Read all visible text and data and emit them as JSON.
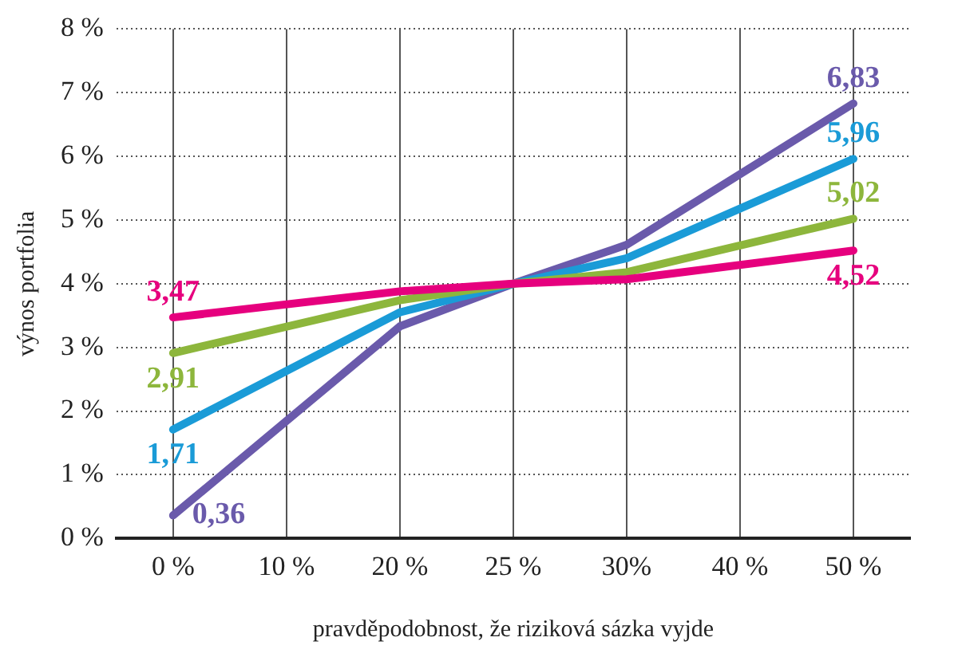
{
  "chart_data": {
    "type": "line",
    "xlabel": "pravděpodobnost, že riziková sázka vyjde",
    "ylabel": "výnos portfolia",
    "categories": [
      "0 %",
      "10 %",
      "20 %",
      "25 %",
      "30%",
      "40 %",
      "50 %"
    ],
    "series": [
      {
        "color": "#e6007e",
        "values": [
          3.47,
          null,
          3.88,
          4.0,
          4.07,
          null,
          4.52
        ],
        "value_labels": [
          "3,47",
          null,
          null,
          null,
          null,
          null,
          "4,52"
        ]
      },
      {
        "color": "#8db63c",
        "values": [
          2.91,
          null,
          3.74,
          4.0,
          4.18,
          null,
          5.02
        ],
        "value_labels": [
          "2,91",
          null,
          null,
          null,
          null,
          null,
          "5,02"
        ]
      },
      {
        "color": "#1a9bd7",
        "values": [
          1.71,
          null,
          3.55,
          4.0,
          4.4,
          null,
          5.96
        ],
        "value_labels": [
          "1,71",
          null,
          null,
          null,
          null,
          null,
          "5,96"
        ]
      },
      {
        "color": "#6a5aab",
        "values": [
          0.36,
          null,
          3.33,
          4.0,
          4.61,
          null,
          6.83
        ],
        "value_labels": [
          "0,36",
          null,
          null,
          null,
          null,
          null,
          "6,83"
        ]
      }
    ],
    "ylim": [
      0,
      8
    ],
    "yticks": [
      {
        "value": 0,
        "label": "0 %"
      },
      {
        "value": 1,
        "label": "1 %"
      },
      {
        "value": 2,
        "label": "2 %"
      },
      {
        "value": 3,
        "label": "3 %"
      },
      {
        "value": 4,
        "label": "4 %"
      },
      {
        "value": 5,
        "label": "5 %"
      },
      {
        "value": 6,
        "label": "6 %"
      },
      {
        "value": 7,
        "label": "7 %"
      },
      {
        "value": 8,
        "label": "8 %"
      }
    ],
    "grid": true,
    "legend": false,
    "line_style": "solid"
  }
}
